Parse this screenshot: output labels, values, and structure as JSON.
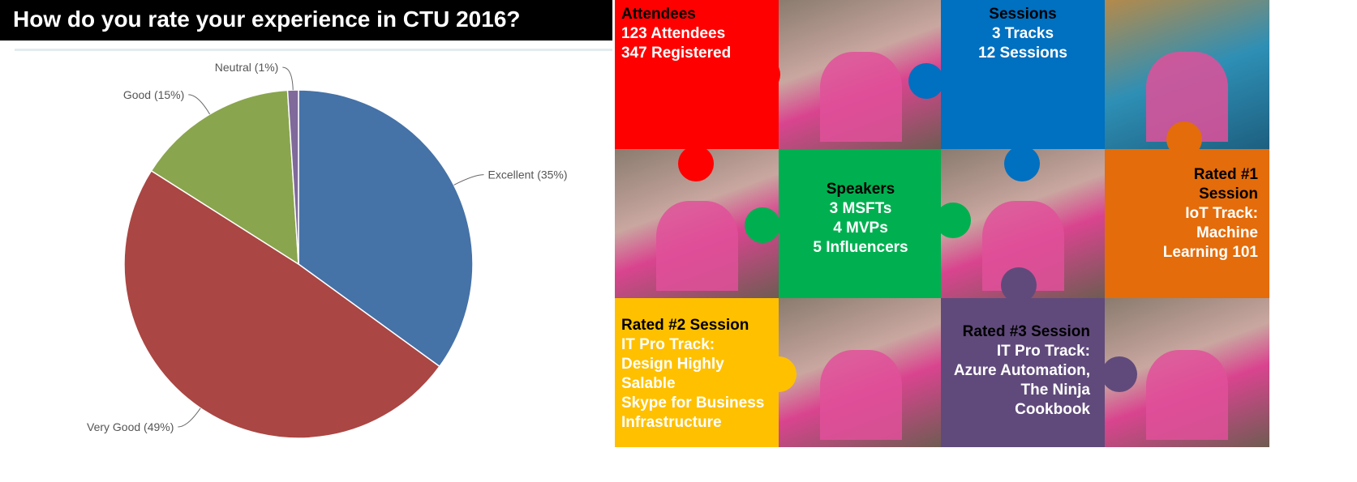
{
  "title": "How do you rate your experience in CTU 2016?",
  "chart_data": {
    "type": "pie",
    "title": "How do you rate your experience in CTU 2016?",
    "start": "top, clockwise",
    "slices": [
      {
        "name": "Excellent",
        "value": 35,
        "label": "Excellent (35%)",
        "color": "#4572A7"
      },
      {
        "name": "Very Good",
        "value": 49,
        "label": "Very Good (49%)",
        "color": "#AA4643"
      },
      {
        "name": "Good",
        "value": 15,
        "label": "Good (15%)",
        "color": "#89A54E"
      },
      {
        "name": "Neutral",
        "value": 1,
        "label": "Neutral (1%)",
        "color": "#80699B"
      }
    ]
  },
  "tiles": {
    "attendees": {
      "heading": "Attendees",
      "lines": [
        "123 Attendees",
        "347 Registered"
      ],
      "color": "#FF0000"
    },
    "sessions": {
      "heading": "Sessions",
      "lines": [
        "3 Tracks",
        "12 Sessions"
      ],
      "color": "#0070C0"
    },
    "speakers": {
      "heading": "Speakers",
      "lines": [
        "3 MSFTs",
        "4 MVPs",
        "5 Influencers"
      ],
      "color": "#00B050"
    },
    "rated1": {
      "heading": "Rated #1",
      "heading2": "Session",
      "lines": [
        "IoT Track:",
        "Machine",
        "Learning 101"
      ],
      "color": "#E46C0A"
    },
    "rated2": {
      "heading": "Rated #2 Session",
      "lines": [
        "IT Pro Track:",
        "Design Highly",
        "Salable",
        "Skype for Business",
        "Infrastructure"
      ],
      "color": "#FFC000"
    },
    "rated3": {
      "heading": "Rated #3 Session",
      "lines": [
        "IT Pro Track:",
        "Azure Automation,",
        "The Ninja",
        "Cookbook"
      ],
      "color": "#604A7B"
    }
  }
}
